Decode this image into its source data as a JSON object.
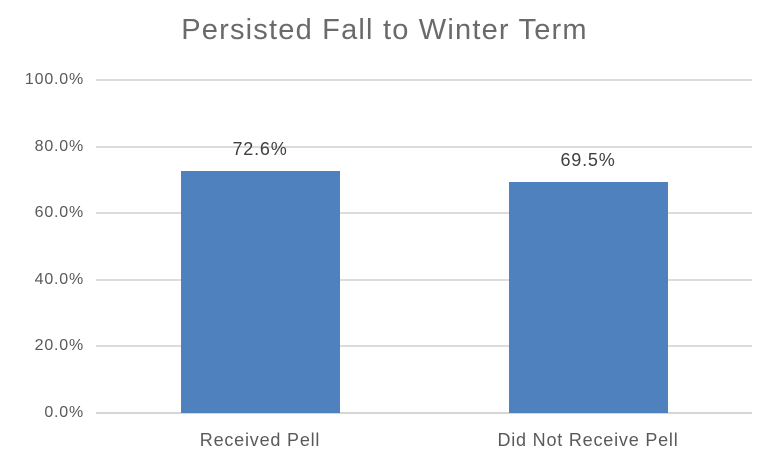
{
  "chart_data": {
    "type": "bar",
    "title": "Persisted Fall to Winter Term",
    "categories": [
      "Received Pell",
      "Did Not Receive Pell"
    ],
    "values": [
      72.6,
      69.5
    ],
    "value_labels": [
      "72.6%",
      "69.5%"
    ],
    "xlabel": "",
    "ylabel": "",
    "ylim": [
      0,
      100
    ],
    "yticks": [
      {
        "value": 0,
        "label": "0.0%"
      },
      {
        "value": 20,
        "label": "20.0%"
      },
      {
        "value": 40,
        "label": "40.0%"
      },
      {
        "value": 60,
        "label": "60.0%"
      },
      {
        "value": 80,
        "label": "80.0%"
      },
      {
        "value": 100,
        "label": "100.0%"
      }
    ],
    "grid": true,
    "legend": false,
    "colors": {
      "bar": "#4e81bd",
      "gridline": "#dcdcdc",
      "axis_line": "#d6d6d6",
      "title_text": "#6a6a6a",
      "axis_text": "#595959",
      "value_text": "#404040",
      "background": "#ffffff"
    }
  }
}
